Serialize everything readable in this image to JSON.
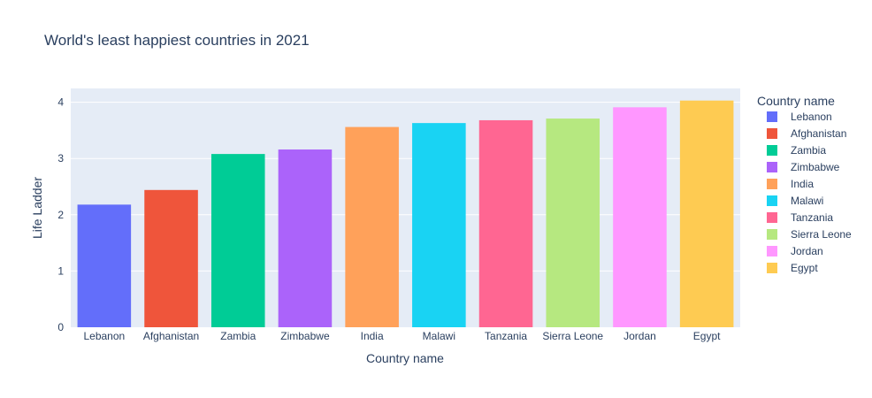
{
  "chart_data": {
    "type": "bar",
    "title": "World's least happiest countries in 2021",
    "xlabel": "Country name",
    "ylabel": "Life Ladder",
    "ylim": [
      0,
      4.2
    ],
    "yticks": [
      0,
      1,
      2,
      3,
      4
    ],
    "grid": true,
    "legend_title": "Country name",
    "legend_position": "right",
    "categories": [
      "Lebanon",
      "Afghanistan",
      "Zambia",
      "Zimbabwe",
      "India",
      "Malawi",
      "Tanzania",
      "Sierra Leone",
      "Jordan",
      "Egypt"
    ],
    "values": [
      2.18,
      2.44,
      3.08,
      3.16,
      3.56,
      3.63,
      3.68,
      3.71,
      3.91,
      4.03
    ],
    "colors": [
      "#636efa",
      "#EF553B",
      "#00cc96",
      "#ab63fa",
      "#FFA15A",
      "#19d3f3",
      "#FF6692",
      "#B6E880",
      "#FF97FF",
      "#FECB52"
    ]
  }
}
